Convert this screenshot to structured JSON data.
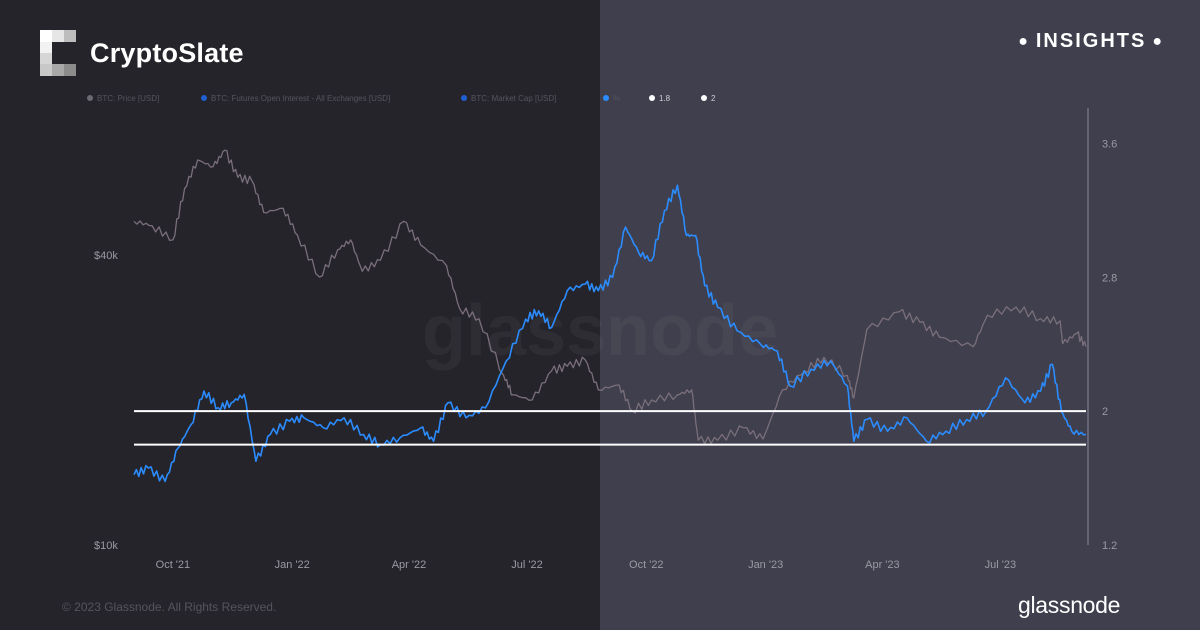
{
  "header": {
    "brand_name": "CryptoSlate",
    "insights_label": "INSIGHTS",
    "logo_icon": "cryptoslate-logo-icon"
  },
  "footer": {
    "copyright": "© 2023 Glassnode. All Rights Reserved.",
    "brand": "glassnode"
  },
  "colors": {
    "price_line": "#7a6f7a",
    "ratio_line": "#2b8cff",
    "threshold_line": "#ffffff",
    "left_panel": "#25242b",
    "right_panel": "#3f3f4d"
  },
  "chart_data": {
    "type": "line",
    "watermark": "glassnode",
    "legend": [
      {
        "label": "BTC: Price [USD]",
        "color": "#6b6a72"
      },
      {
        "label": "BTC: Futures Open Interest - All Exchanges [USD]",
        "color": "#1f5fd0"
      },
      {
        "label": "BTC: Market Cap [USD]",
        "color": "#1f5fd0"
      },
      {
        "label": "%",
        "color": "#2b8cff"
      },
      {
        "label": "1.8",
        "color": "#ffffff"
      },
      {
        "label": "2",
        "color": "#ffffff"
      }
    ],
    "x_ticks": [
      "Oct '21",
      "Jan '22",
      "Apr '22",
      "Jul '22",
      "Oct '22",
      "Jan '23",
      "Apr '23",
      "Jul '23"
    ],
    "x_range": [
      "2021-09-01",
      "2023-09-05"
    ],
    "x_tick_dates": [
      "2021-10-01",
      "2022-01-01",
      "2022-04-01",
      "2022-07-01",
      "2022-10-01",
      "2023-01-01",
      "2023-04-01",
      "2023-07-01"
    ],
    "y_left": {
      "ticks": [
        "$40k",
        "$10k"
      ],
      "tick_values": [
        40000,
        10000
      ],
      "scale": "log",
      "range": [
        10000,
        80000
      ]
    },
    "y_right": {
      "ticks": [
        "3.6",
        "2.8",
        "2",
        "1.2"
      ],
      "tick_values": [
        3.6,
        2.8,
        2.0,
        1.2
      ],
      "range": [
        1.2,
        3.8
      ]
    },
    "thresholds": [
      2.0,
      1.8
    ],
    "series": [
      {
        "name": "BTC: Price [USD]",
        "axis": "left",
        "color": "#7a6f7a",
        "points": [
          [
            "2021-09-01",
            47000
          ],
          [
            "2021-09-15",
            46000
          ],
          [
            "2021-10-01",
            43000
          ],
          [
            "2021-10-10",
            55000
          ],
          [
            "2021-10-20",
            63000
          ],
          [
            "2021-11-01",
            61000
          ],
          [
            "2021-11-10",
            66000
          ],
          [
            "2021-11-20",
            58000
          ],
          [
            "2021-12-01",
            57000
          ],
          [
            "2021-12-10",
            49000
          ],
          [
            "2021-12-25",
            50000
          ],
          [
            "2022-01-05",
            44000
          ],
          [
            "2022-01-22",
            36000
          ],
          [
            "2022-02-05",
            41000
          ],
          [
            "2022-02-15",
            43000
          ],
          [
            "2022-02-24",
            37000
          ],
          [
            "2022-03-10",
            39000
          ],
          [
            "2022-03-28",
            47000
          ],
          [
            "2022-04-10",
            42000
          ],
          [
            "2022-04-30",
            38000
          ],
          [
            "2022-05-10",
            31000
          ],
          [
            "2022-05-25",
            29500
          ],
          [
            "2022-06-13",
            22500
          ],
          [
            "2022-06-20",
            20500
          ],
          [
            "2022-07-05",
            20000
          ],
          [
            "2022-07-20",
            23000
          ],
          [
            "2022-08-01",
            23500
          ],
          [
            "2022-08-15",
            24200
          ],
          [
            "2022-08-25",
            21000
          ],
          [
            "2022-09-10",
            21500
          ],
          [
            "2022-09-20",
            19000
          ],
          [
            "2022-10-05",
            20000
          ],
          [
            "2022-10-25",
            20500
          ],
          [
            "2022-11-05",
            21000
          ],
          [
            "2022-11-10",
            16500
          ],
          [
            "2022-11-25",
            16500
          ],
          [
            "2022-12-15",
            17500
          ],
          [
            "2022-12-30",
            16600
          ],
          [
            "2023-01-14",
            21000
          ],
          [
            "2023-01-31",
            23000
          ],
          [
            "2023-02-15",
            24500
          ],
          [
            "2023-03-05",
            22500
          ],
          [
            "2023-03-10",
            20200
          ],
          [
            "2023-03-20",
            28000
          ],
          [
            "2023-04-14",
            30500
          ],
          [
            "2023-04-30",
            29000
          ],
          [
            "2023-05-15",
            27000
          ],
          [
            "2023-06-10",
            25800
          ],
          [
            "2023-06-21",
            30000
          ],
          [
            "2023-07-13",
            31200
          ],
          [
            "2023-08-01",
            29500
          ],
          [
            "2023-08-16",
            29200
          ],
          [
            "2023-08-18",
            26200
          ],
          [
            "2023-08-29",
            27500
          ],
          [
            "2023-09-05",
            25800
          ]
        ]
      },
      {
        "name": "%",
        "axis": "right",
        "color": "#2b8cff",
        "points": [
          [
            "2021-09-01",
            1.62
          ],
          [
            "2021-09-12",
            1.66
          ],
          [
            "2021-09-25",
            1.58
          ],
          [
            "2021-10-05",
            1.78
          ],
          [
            "2021-10-15",
            1.92
          ],
          [
            "2021-10-25",
            2.12
          ],
          [
            "2021-11-05",
            2.02
          ],
          [
            "2021-11-15",
            2.05
          ],
          [
            "2021-11-25",
            2.1
          ],
          [
            "2021-12-04",
            1.7
          ],
          [
            "2021-12-15",
            1.86
          ],
          [
            "2021-12-30",
            1.94
          ],
          [
            "2022-01-10",
            1.96
          ],
          [
            "2022-01-25",
            1.9
          ],
          [
            "2022-02-10",
            1.96
          ],
          [
            "2022-02-25",
            1.86
          ],
          [
            "2022-03-10",
            1.8
          ],
          [
            "2022-03-25",
            1.84
          ],
          [
            "2022-04-10",
            1.9
          ],
          [
            "2022-04-20",
            1.82
          ],
          [
            "2022-05-01",
            2.05
          ],
          [
            "2022-05-15",
            1.96
          ],
          [
            "2022-05-30",
            2.02
          ],
          [
            "2022-06-15",
            2.3
          ],
          [
            "2022-06-30",
            2.55
          ],
          [
            "2022-07-10",
            2.6
          ],
          [
            "2022-07-20",
            2.5
          ],
          [
            "2022-08-01",
            2.72
          ],
          [
            "2022-08-15",
            2.76
          ],
          [
            "2022-08-25",
            2.72
          ],
          [
            "2022-09-05",
            2.8
          ],
          [
            "2022-09-15",
            3.1
          ],
          [
            "2022-09-25",
            2.95
          ],
          [
            "2022-10-05",
            2.9
          ],
          [
            "2022-10-15",
            3.2
          ],
          [
            "2022-10-25",
            3.35
          ],
          [
            "2022-11-01",
            3.05
          ],
          [
            "2022-11-08",
            3.05
          ],
          [
            "2022-11-15",
            2.75
          ],
          [
            "2022-11-25",
            2.62
          ],
          [
            "2022-12-10",
            2.48
          ],
          [
            "2022-12-28",
            2.4
          ],
          [
            "2023-01-10",
            2.36
          ],
          [
            "2023-01-20",
            2.15
          ],
          [
            "2023-02-05",
            2.25
          ],
          [
            "2023-02-20",
            2.3
          ],
          [
            "2023-03-05",
            2.15
          ],
          [
            "2023-03-10",
            1.82
          ],
          [
            "2023-03-20",
            1.95
          ],
          [
            "2023-04-05",
            1.88
          ],
          [
            "2023-04-20",
            1.96
          ],
          [
            "2023-05-05",
            1.82
          ],
          [
            "2023-05-20",
            1.88
          ],
          [
            "2023-06-05",
            1.95
          ],
          [
            "2023-06-20",
            2.0
          ],
          [
            "2023-07-05",
            2.2
          ],
          [
            "2023-07-20",
            2.05
          ],
          [
            "2023-08-01",
            2.12
          ],
          [
            "2023-08-10",
            2.28
          ],
          [
            "2023-08-17",
            2.0
          ],
          [
            "2023-08-25",
            1.88
          ],
          [
            "2023-09-05",
            1.86
          ]
        ]
      }
    ]
  }
}
